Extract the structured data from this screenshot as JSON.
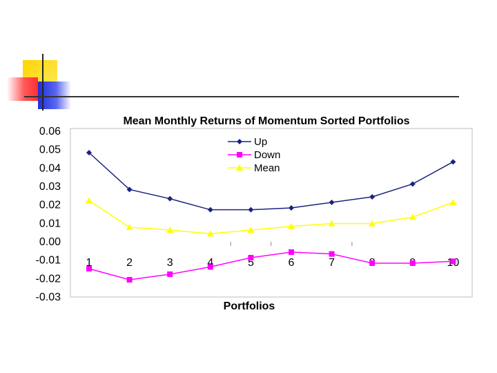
{
  "chart_data": {
    "type": "line",
    "title": "Mean Monthly Returns of Momentum Sorted Portfolios",
    "xlabel": "Portfolios",
    "ylabel": "",
    "categories": [
      "1",
      "2",
      "3",
      "4",
      "5",
      "6",
      "7",
      "8",
      "9",
      "10"
    ],
    "ylim": [
      -0.03,
      0.06
    ],
    "yticks": [
      "0.06",
      "0.05",
      "0.04",
      "0.03",
      "0.02",
      "0.01",
      "0.00",
      "-0.01",
      "-0.02",
      "-0.03"
    ],
    "legend_position": "top-center",
    "series": [
      {
        "name": "Up",
        "color": "#1a237e",
        "marker": "diamond",
        "values": [
          0.048,
          0.028,
          0.023,
          0.017,
          0.017,
          0.018,
          0.021,
          0.024,
          0.031,
          0.043
        ]
      },
      {
        "name": "Down",
        "color": "#ff00ff",
        "marker": "square",
        "values": [
          -0.015,
          -0.021,
          -0.018,
          -0.014,
          -0.009,
          -0.006,
          -0.007,
          -0.012,
          -0.012,
          -0.011
        ]
      },
      {
        "name": "Mean",
        "color": "#ffff00",
        "marker": "triangle",
        "values": [
          0.022,
          0.0075,
          0.006,
          0.004,
          0.006,
          0.008,
          0.0095,
          0.0095,
          0.013,
          0.021
        ]
      }
    ]
  }
}
